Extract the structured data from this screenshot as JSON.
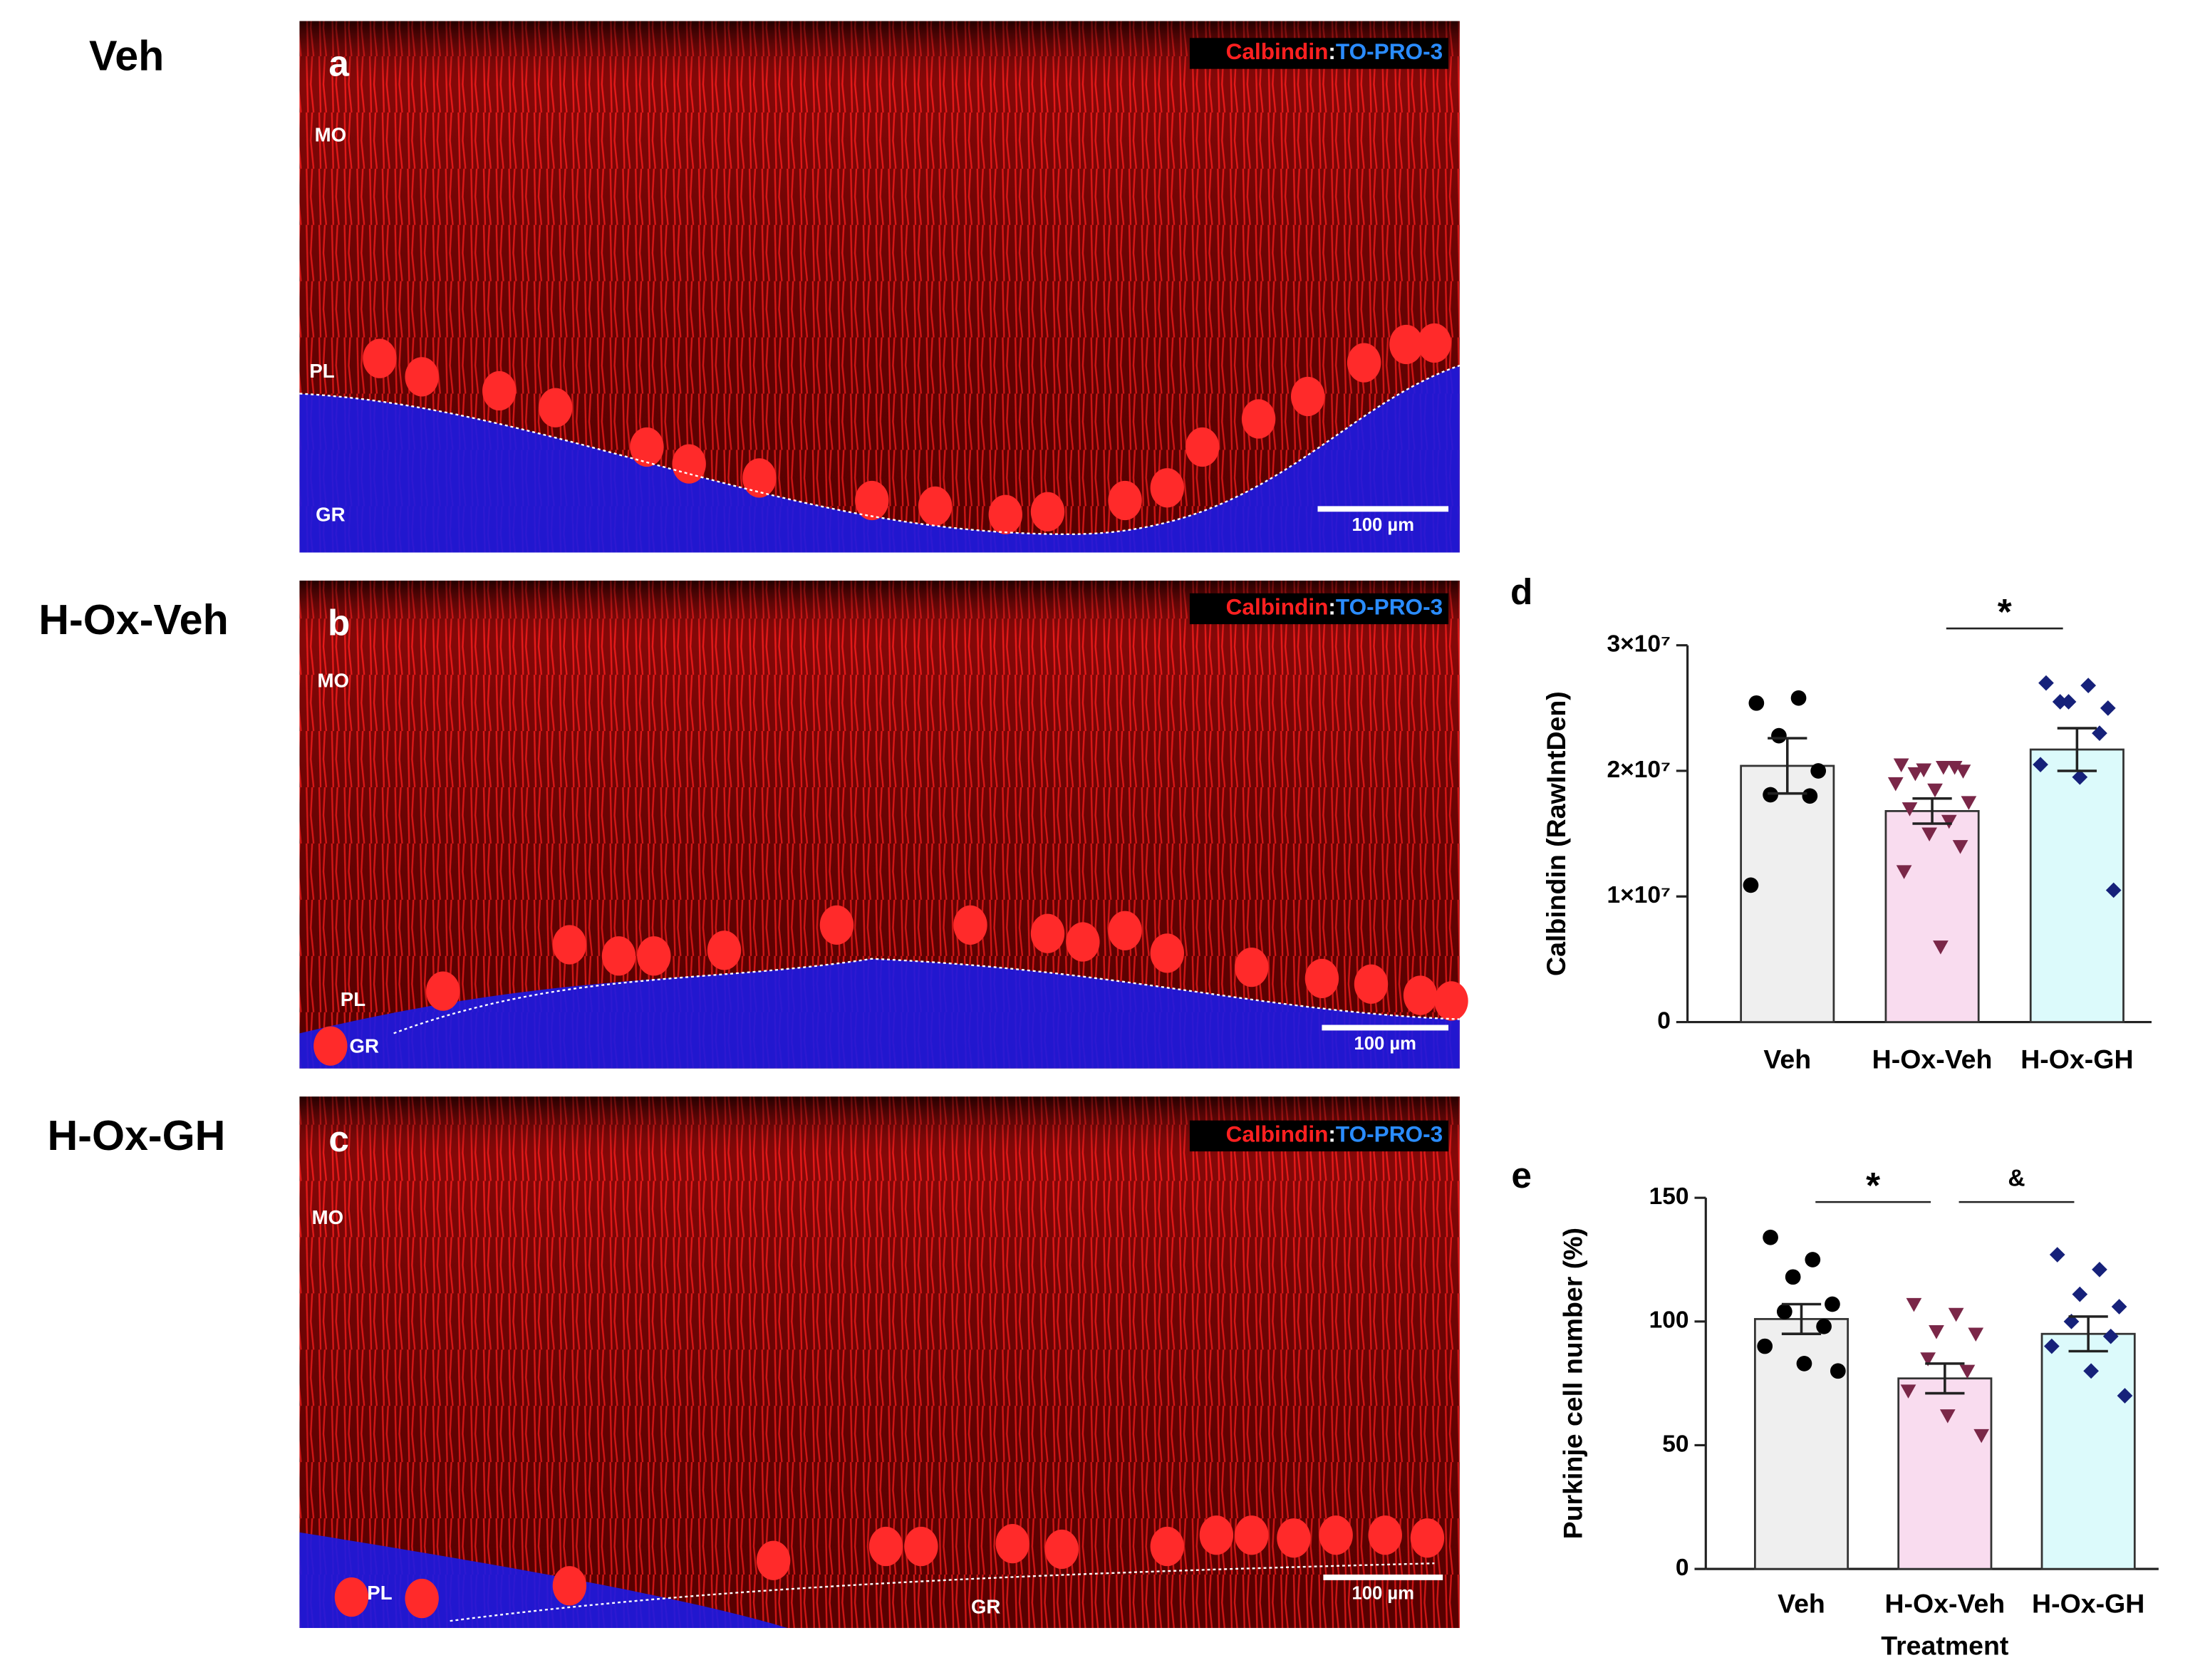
{
  "panels": [
    {
      "row_label": "Veh",
      "letter": "a",
      "stain": [
        "Calbindin",
        ":",
        "TO-PRO-3"
      ],
      "regions": [
        "MO",
        "PL",
        "GR"
      ],
      "scale_bar": "100 µm"
    },
    {
      "row_label": "H-Ox-Veh",
      "letter": "b",
      "stain": [
        "Calbindin",
        ":",
        "TO-PRO-3"
      ],
      "regions": [
        "MO",
        "PL",
        "GR"
      ],
      "scale_bar": "100 µm"
    },
    {
      "row_label": "H-Ox-GH",
      "letter": "c",
      "stain": [
        "Calbindin",
        ":",
        "TO-PRO-3"
      ],
      "regions": [
        "MO",
        "PL",
        "GR"
      ],
      "scale_bar": "100 µm"
    }
  ],
  "chart_data": [
    {
      "type": "bar",
      "panel": "d",
      "ylabel": "Calbindin (RawIntDen)",
      "categories": [
        "Veh",
        "H-Ox-Veh",
        "H-Ox-GH"
      ],
      "values": [
        20400000,
        16800000,
        21700000
      ],
      "errors": [
        2200000,
        1000000,
        1700000
      ],
      "colors": [
        "#efefef",
        "#f9dcef",
        "#dcfafb"
      ],
      "marker_shapes": [
        "circle",
        "triangle",
        "diamond"
      ],
      "marker_colors": [
        "#000000",
        "#7a2748",
        "#16217a"
      ],
      "points": [
        [
          25400000,
          25800000,
          22800000,
          20000000,
          18100000,
          18000000,
          10900000
        ],
        [
          20500000,
          20300000,
          20100000,
          20000000,
          19800000,
          20300000,
          19000000,
          18500000,
          17500000,
          17000000,
          16000000,
          15000000,
          14000000,
          12000000,
          6000000
        ],
        [
          27000000,
          26800000,
          25500000,
          25000000,
          25500000,
          23000000,
          20500000,
          19500000,
          10500000
        ]
      ],
      "ylim": [
        0,
        30000000
      ],
      "yticks": [
        0,
        {
          "value": 10000000,
          "label": "1×10⁷"
        },
        {
          "value": 20000000,
          "label": "2×10⁷"
        },
        {
          "value": 30000000,
          "label": "3×10⁷"
        }
      ],
      "annotations": [
        {
          "text": "*",
          "from": 1,
          "to": 2
        }
      ]
    },
    {
      "type": "bar",
      "panel": "e",
      "ylabel": "Purkinje cell number (%)",
      "xlabel": "Treatment",
      "categories": [
        "Veh",
        "H-Ox-Veh",
        "H-Ox-GH"
      ],
      "values": [
        101,
        77,
        95
      ],
      "errors": [
        6,
        6,
        7
      ],
      "colors": [
        "#efefef",
        "#f9dcef",
        "#dcfafb"
      ],
      "marker_shapes": [
        "circle",
        "triangle",
        "diamond"
      ],
      "marker_colors": [
        "#000000",
        "#7a2748",
        "#16217a"
      ],
      "points": [
        [
          134,
          125,
          118,
          107,
          104,
          98,
          90,
          83,
          80
        ],
        [
          107,
          103,
          96,
          95,
          85,
          80,
          72,
          62,
          54
        ],
        [
          127,
          121,
          111,
          106,
          100,
          94,
          90,
          80,
          70
        ]
      ],
      "ylim": [
        0,
        150
      ],
      "yticks": [
        0,
        50,
        100,
        150
      ],
      "annotations": [
        {
          "text": "*",
          "from": 0,
          "to": 1
        },
        {
          "text": "&",
          "from": 1,
          "to": 2
        }
      ]
    }
  ]
}
